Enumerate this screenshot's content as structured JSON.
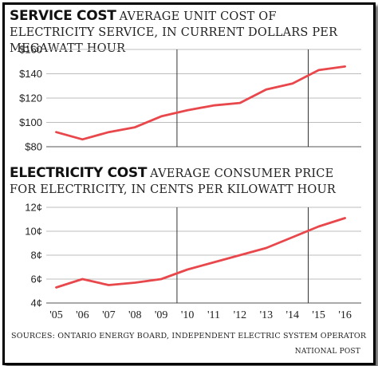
{
  "chart_data": [
    {
      "type": "line",
      "title": "SERVICE COST",
      "subtitle": "AVERAGE UNIT COST OF ELECTRICITY SERVICE, IN CURRENT DOLLARS PER MEGAWATT HOUR",
      "xlabel": "",
      "ylabel": "",
      "yticks": [
        "$160",
        "$140",
        "$120",
        "$100",
        "$80"
      ],
      "ylim": [
        80,
        160
      ],
      "grid": true,
      "color": "#e8474b",
      "series": [
        {
          "x": [
            2005,
            2006,
            2007,
            2008,
            2009,
            2010,
            2011,
            2012,
            2013,
            2014,
            2015,
            2016
          ],
          "values": [
            92,
            86,
            92,
            96,
            105,
            110,
            114,
            116,
            127,
            132,
            143,
            146
          ]
        }
      ]
    },
    {
      "type": "line",
      "title": "ELECTRICITY COST",
      "subtitle": "AVERAGE CONSUMER PRICE FOR ELECTRICITY, IN CENTS PER KILOWATT HOUR",
      "xlabel": "",
      "ylabel": "",
      "yticks": [
        "12¢",
        "10¢",
        "8¢",
        "6¢",
        "4¢"
      ],
      "ylim": [
        4,
        12
      ],
      "grid": true,
      "color": "#e8474b",
      "categories": [
        "'05",
        "'06",
        "'07",
        "'08",
        "'09",
        "'10",
        "'11",
        "'12",
        "'13",
        "'14",
        "'15",
        "'16"
      ],
      "series": [
        {
          "x": [
            2005,
            2006,
            2007,
            2008,
            2009,
            2010,
            2011,
            2012,
            2013,
            2014,
            2015,
            2016
          ],
          "values": [
            5.3,
            6.0,
            5.5,
            5.7,
            6.0,
            6.8,
            7.4,
            8.0,
            8.6,
            9.5,
            10.4,
            11.1
          ]
        }
      ]
    }
  ],
  "sources": "SOURCES: ONTARIO ENERGY BOARD, INDEPENDENT ELECTRIC SYSTEM OPERATOR",
  "credit": "NATIONAL POST"
}
